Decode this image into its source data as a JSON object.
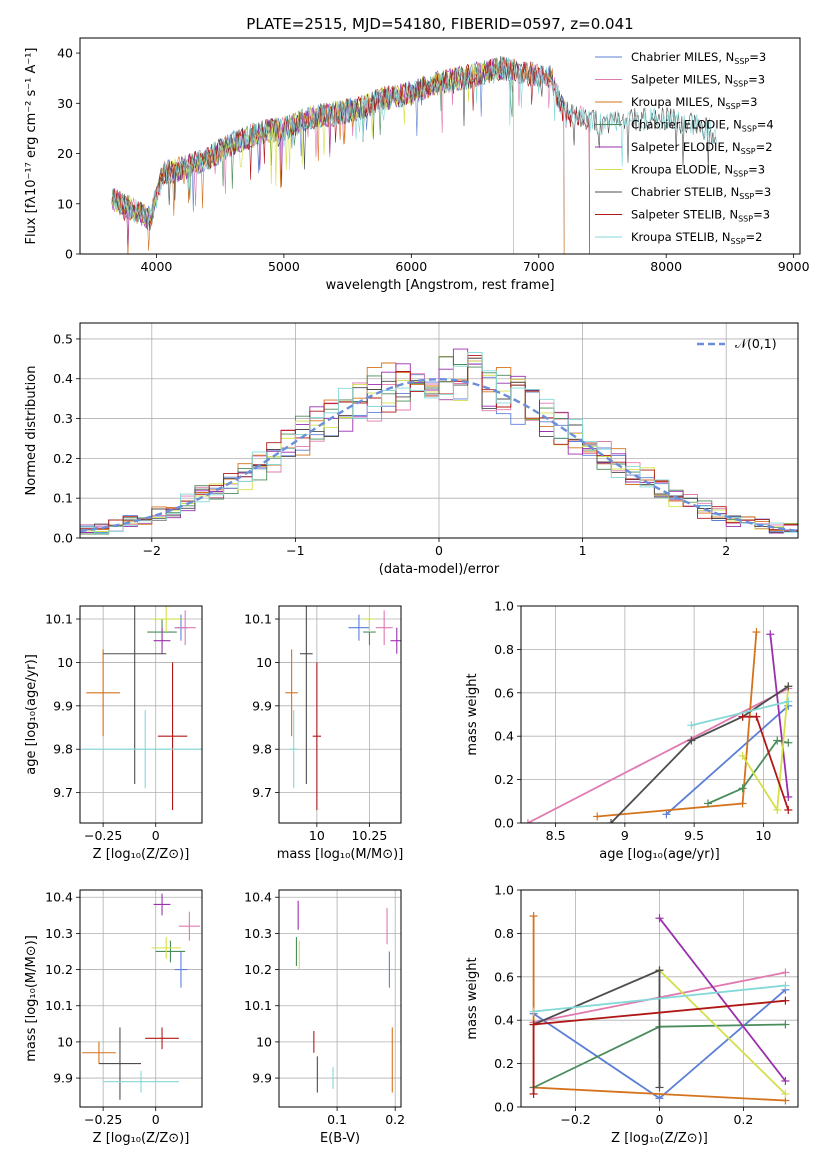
{
  "figure": {
    "title": "PLATE=2515, MJD=54180, FIBERID=0597, z=0.041"
  },
  "colors": {
    "Chabrier MILES": "#5b7fd6",
    "Salpeter MILES": "#e07ab0",
    "Kroupa MILES": "#d4731c",
    "Chabrier ELODIE": "#4a8c5a",
    "Salpeter ELODIE": "#9b2fae",
    "Kroupa ELODIE": "#d4e04a",
    "Chabrier STELIB": "#4d4d4d",
    "Salpeter STELIB": "#b01818",
    "Kroupa STELIB": "#84d8d8",
    "gauss": "#6a8fd8"
  },
  "chart_data": [
    {
      "type": "line",
      "id": "spectrum",
      "xlabel": "wavelength [Angstrom, rest frame]",
      "ylabel": "Flux [f",
      "ylabel_full": "Flux [fλ10⁻¹⁷ erg cm⁻² s⁻¹ A⁻¹]",
      "xlim": [
        3400,
        9050
      ],
      "ylim": [
        0,
        43
      ],
      "xticks": [
        4000,
        5000,
        6000,
        7000,
        8000,
        9000
      ],
      "yticks": [
        0,
        10,
        20,
        30,
        40
      ],
      "legend_position": "top-right",
      "legend": [
        {
          "model": "Chabrier MILES",
          "prefix": "Chabrier MILES, N",
          "n": "3"
        },
        {
          "model": "Salpeter MILES",
          "prefix": "Salpeter MILES, N",
          "n": "3"
        },
        {
          "model": "Kroupa MILES",
          "prefix": "Kroupa MILES, N",
          "n": "3"
        },
        {
          "model": "Chabrier ELODIE",
          "prefix": "Chabrier ELODIE, N",
          "n": "4"
        },
        {
          "model": "Salpeter ELODIE",
          "prefix": "Salpeter ELODIE, N",
          "n": "2"
        },
        {
          "model": "Kroupa ELODIE",
          "prefix": "Kroupa ELODIE, N",
          "n": "3"
        },
        {
          "model": "Chabrier STELIB",
          "prefix": "Chabrier STELIB, N",
          "n": "3"
        },
        {
          "model": "Salpeter STELIB",
          "prefix": "Salpeter STELIB, N",
          "n": "3"
        },
        {
          "model": "Kroupa STELIB",
          "prefix": "Kroupa STELIB, N",
          "n": "2"
        }
      ],
      "legend_sub": "SSP",
      "continuum": {
        "x": [
          3650,
          3800,
          3950,
          4050,
          4200,
          4400,
          4600,
          4800,
          5000,
          5200,
          5400,
          5600,
          5800,
          6000,
          6200,
          6400,
          6550,
          6700,
          6900,
          7100,
          7200,
          7500,
          7800,
          8000,
          8200,
          8400,
          8600
        ],
        "y": [
          11,
          9,
          7,
          16,
          17,
          19,
          22,
          24,
          25,
          27,
          28,
          29,
          31,
          32,
          34,
          35,
          36,
          37,
          36,
          35,
          28,
          26,
          27,
          27,
          26,
          24,
          22
        ]
      },
      "segments": {
        "Chabrier MILES": [
          3650,
          7200
        ],
        "Salpeter MILES": [
          3650,
          7400
        ],
        "Kroupa MILES": [
          3650,
          7200
        ],
        "Chabrier ELODIE": [
          3650,
          6800
        ],
        "Salpeter ELODIE": [
          3650,
          6800
        ],
        "Kroupa ELODIE": [
          3650,
          6800
        ],
        "Chabrier STELIB": [
          3650,
          8400
        ],
        "Salpeter STELIB": [
          3650,
          7400
        ],
        "Kroupa STELIB": [
          3650,
          8400
        ]
      }
    },
    {
      "type": "histogram",
      "id": "residuals",
      "xlabel": "(data-model)/error",
      "ylabel": "Normed distribution",
      "xlim": [
        -2.5,
        2.5
      ],
      "ylim": [
        0,
        0.54
      ],
      "xticks": [
        -2,
        -1,
        0,
        1,
        2
      ],
      "yticks": [
        0.0,
        0.1,
        0.2,
        0.3,
        0.4,
        0.5
      ],
      "legend": "𝒩(0,1)",
      "legend_position": "top-right",
      "bin_width": 0.1,
      "models": [
        "Chabrier MILES",
        "Salpeter MILES",
        "Kroupa MILES",
        "Chabrier ELODIE",
        "Salpeter ELODIE",
        "Kroupa ELODIE",
        "Chabrier STELIB",
        "Salpeter STELIB",
        "Kroupa STELIB"
      ]
    },
    {
      "type": "errorbar",
      "id": "age-vs-Z",
      "xlabel": "Z [log₁₀(Z/Z⊙)]",
      "ylabel": "age  [log₁₀(age/yr)]",
      "xlim": [
        -0.36,
        0.22
      ],
      "ylim": [
        9.63,
        10.13
      ],
      "xticks": [
        -0.25,
        0.0
      ],
      "yticks": [
        9.7,
        9.8,
        9.9,
        10.0,
        10.1
      ],
      "points": [
        {
          "model": "Chabrier MILES",
          "x": 0.12,
          "xerr": 0.03,
          "y": 10.08,
          "yerr": 0.03
        },
        {
          "model": "Salpeter MILES",
          "x": 0.14,
          "xerr": 0.05,
          "y": 10.08,
          "yerr": 0.04
        },
        {
          "model": "Kroupa MILES",
          "x": -0.25,
          "xerr": 0.08,
          "y": 9.93,
          "yerr": 0.1
        },
        {
          "model": "Chabrier ELODIE",
          "x": 0.03,
          "xerr": 0.07,
          "y": 10.07,
          "yerr": 0.03
        },
        {
          "model": "Salpeter ELODIE",
          "x": 0.03,
          "xerr": 0.04,
          "y": 10.05,
          "yerr": 0.03
        },
        {
          "model": "Kroupa ELODIE",
          "x": 0.05,
          "xerr": 0.07,
          "y": 10.1,
          "yerr": 0.03
        },
        {
          "model": "Chabrier STELIB",
          "x": -0.1,
          "xerr": 0.15,
          "y": 10.02,
          "yerr": 0.3
        },
        {
          "model": "Salpeter STELIB",
          "x": 0.08,
          "xerr": 0.07,
          "y": 9.83,
          "yerr": 0.17
        },
        {
          "model": "Kroupa STELIB",
          "x": -0.05,
          "xerr": 0.3,
          "y": 9.8,
          "yerr": 0.09
        }
      ]
    },
    {
      "type": "errorbar",
      "id": "age-vs-mass",
      "xlabel": "mass [log₁₀(M/M⊙)]",
      "ylabel": "",
      "xlim": [
        9.82,
        10.4
      ],
      "ylim": [
        9.63,
        10.13
      ],
      "xticks": [
        10.0,
        10.25
      ],
      "yticks": [
        9.7,
        9.8,
        9.9,
        10.0,
        10.1
      ],
      "points": [
        {
          "model": "Chabrier MILES",
          "x": 10.2,
          "xerr": 0.05,
          "y": 10.08,
          "yerr": 0.03
        },
        {
          "model": "Salpeter MILES",
          "x": 10.32,
          "xerr": 0.04,
          "y": 10.08,
          "yerr": 0.04
        },
        {
          "model": "Kroupa MILES",
          "x": 9.88,
          "xerr": 0.03,
          "y": 9.93,
          "yerr": 0.1
        },
        {
          "model": "Chabrier ELODIE",
          "x": 10.25,
          "xerr": 0.03,
          "y": 10.07,
          "yerr": 0.03
        },
        {
          "model": "Salpeter ELODIE",
          "x": 10.38,
          "xerr": 0.03,
          "y": 10.05,
          "yerr": 0.03
        },
        {
          "model": "Kroupa ELODIE",
          "x": 10.25,
          "xerr": 0.03,
          "y": 10.1,
          "yerr": 0.03
        },
        {
          "model": "Chabrier STELIB",
          "x": 9.95,
          "xerr": 0.03,
          "y": 10.02,
          "yerr": 0.3
        },
        {
          "model": "Salpeter STELIB",
          "x": 10.0,
          "xerr": 0.02,
          "y": 9.83,
          "yerr": 0.17
        },
        {
          "model": "Kroupa STELIB",
          "x": 9.89,
          "xerr": 0.02,
          "y": 9.8,
          "yerr": 0.09
        }
      ]
    },
    {
      "type": "line",
      "id": "massweight-vs-age",
      "xlabel": "age  [log₁₀(age/yr)]",
      "ylabel": "mass weight",
      "xlim": [
        8.25,
        10.25
      ],
      "ylim": [
        0,
        1.0
      ],
      "xticks": [
        8.5,
        9.0,
        9.5,
        10.0
      ],
      "yticks": [
        0.0,
        0.2,
        0.4,
        0.6,
        0.8,
        1.0
      ],
      "series": [
        {
          "model": "Chabrier MILES",
          "points": [
            [
              9.3,
              0.04
            ],
            [
              10.18,
              0.54
            ]
          ]
        },
        {
          "model": "Salpeter MILES",
          "points": [
            [
              8.3,
              0.0
            ],
            [
              10.18,
              0.62
            ]
          ]
        },
        {
          "model": "Kroupa MILES",
          "points": [
            [
              8.8,
              0.03
            ],
            [
              9.85,
              0.09
            ],
            [
              9.95,
              0.88
            ]
          ]
        },
        {
          "model": "Chabrier ELODIE",
          "points": [
            [
              9.6,
              0.09
            ],
            [
              9.85,
              0.16
            ],
            [
              10.1,
              0.38
            ],
            [
              10.18,
              0.37
            ]
          ]
        },
        {
          "model": "Salpeter ELODIE",
          "points": [
            [
              10.05,
              0.87
            ],
            [
              10.18,
              0.12
            ]
          ]
        },
        {
          "model": "Kroupa ELODIE",
          "points": [
            [
              9.85,
              0.31
            ],
            [
              10.1,
              0.06
            ],
            [
              10.18,
              0.63
            ]
          ]
        },
        {
          "model": "Chabrier STELIB",
          "points": [
            [
              8.9,
              0.0
            ],
            [
              9.48,
              0.38
            ],
            [
              9.85,
              0.49
            ],
            [
              10.18,
              0.63
            ]
          ]
        },
        {
          "model": "Salpeter STELIB",
          "points": [
            [
              9.85,
              0.49
            ],
            [
              9.95,
              0.49
            ],
            [
              10.18,
              0.06
            ]
          ]
        },
        {
          "model": "Kroupa STELIB",
          "points": [
            [
              9.48,
              0.45
            ],
            [
              10.18,
              0.56
            ]
          ]
        }
      ]
    },
    {
      "type": "errorbar",
      "id": "mass-vs-Z",
      "xlabel": "Z [log₁₀(Z/Z⊙)]",
      "ylabel": "mass [log₁₀(M/M⊙)]",
      "xlim": [
        -0.36,
        0.22
      ],
      "ylim": [
        9.82,
        10.42
      ],
      "xticks": [
        -0.25,
        0.0
      ],
      "yticks": [
        9.9,
        10.0,
        10.1,
        10.2,
        10.3,
        10.4
      ],
      "points": [
        {
          "model": "Chabrier MILES",
          "x": 0.12,
          "xerr": 0.03,
          "y": 10.2,
          "yerr": 0.05
        },
        {
          "model": "Salpeter MILES",
          "x": 0.16,
          "xerr": 0.05,
          "y": 10.32,
          "yerr": 0.04
        },
        {
          "model": "Kroupa MILES",
          "x": -0.27,
          "xerr": 0.08,
          "y": 9.97,
          "yerr": 0.03
        },
        {
          "model": "Chabrier ELODIE",
          "x": 0.07,
          "xerr": 0.07,
          "y": 10.25,
          "yerr": 0.03
        },
        {
          "model": "Salpeter ELODIE",
          "x": 0.03,
          "xerr": 0.04,
          "y": 10.38,
          "yerr": 0.03
        },
        {
          "model": "Kroupa ELODIE",
          "x": 0.05,
          "xerr": 0.07,
          "y": 10.26,
          "yerr": 0.03
        },
        {
          "model": "Chabrier STELIB",
          "x": -0.17,
          "xerr": 0.1,
          "y": 9.94,
          "yerr": 0.1
        },
        {
          "model": "Salpeter STELIB",
          "x": 0.03,
          "xerr": 0.08,
          "y": 10.01,
          "yerr": 0.03
        },
        {
          "model": "Kroupa STELIB",
          "x": -0.07,
          "xerr": 0.18,
          "y": 9.89,
          "yerr": 0.03
        }
      ]
    },
    {
      "type": "errorbar",
      "id": "mass-vs-EBV",
      "xlabel": "E(B-V)",
      "ylabel": "",
      "xlim": [
        0.0,
        0.21
      ],
      "ylim": [
        9.82,
        10.42
      ],
      "xticks": [
        0.1,
        0.2
      ],
      "yticks": [
        9.9,
        10.0,
        10.1,
        10.2,
        10.3,
        10.4
      ],
      "points": [
        {
          "model": "Chabrier MILES",
          "x": 0.19,
          "xerr": 0.0,
          "y": 10.2,
          "yerr": 0.05
        },
        {
          "model": "Salpeter MILES",
          "x": 0.186,
          "xerr": 0.0,
          "y": 10.32,
          "yerr": 0.05
        },
        {
          "model": "Kroupa MILES",
          "x": 0.195,
          "xerr": 0.0,
          "y": 9.95,
          "yerr": 0.09
        },
        {
          "model": "Chabrier ELODIE",
          "x": 0.03,
          "xerr": 0.0,
          "y": 10.25,
          "yerr": 0.04
        },
        {
          "model": "Salpeter ELODIE",
          "x": 0.033,
          "xerr": 0.0,
          "y": 10.35,
          "yerr": 0.04
        },
        {
          "model": "Kroupa ELODIE",
          "x": 0.035,
          "xerr": 0.0,
          "y": 10.24,
          "yerr": 0.04
        },
        {
          "model": "Chabrier STELIB",
          "x": 0.066,
          "xerr": 0.0,
          "y": 9.91,
          "yerr": 0.05
        },
        {
          "model": "Salpeter STELIB",
          "x": 0.06,
          "xerr": 0.0,
          "y": 10.0,
          "yerr": 0.03
        },
        {
          "model": "Kroupa STELIB",
          "x": 0.093,
          "xerr": 0.0,
          "y": 9.9,
          "yerr": 0.03
        }
      ]
    },
    {
      "type": "line",
      "id": "massweight-vs-Z",
      "xlabel": "Z [log₁₀(Z/Z⊙)]",
      "ylabel": "mass weight",
      "xlim": [
        -0.33,
        0.33
      ],
      "ylim": [
        0,
        1.0
      ],
      "xticks": [
        -0.2,
        0.0,
        0.2
      ],
      "yticks": [
        0.0,
        0.2,
        0.4,
        0.6,
        0.8,
        1.0
      ],
      "series": [
        {
          "model": "Chabrier MILES",
          "points": [
            [
              -0.3,
              0.43
            ],
            [
              0.0,
              0.04
            ],
            [
              0.3,
              0.54
            ]
          ]
        },
        {
          "model": "Salpeter MILES",
          "points": [
            [
              -0.3,
              0.39
            ],
            [
              0.3,
              0.62
            ]
          ]
        },
        {
          "model": "Kroupa MILES",
          "points": [
            [
              -0.3,
              0.88
            ],
            [
              -0.3,
              0.09
            ],
            [
              0.3,
              0.03
            ]
          ]
        },
        {
          "model": "Chabrier ELODIE",
          "points": [
            [
              -0.3,
              0.09
            ],
            [
              0.0,
              0.37
            ],
            [
              0.3,
              0.38
            ]
          ]
        },
        {
          "model": "Salpeter ELODIE",
          "points": [
            [
              0.0,
              0.87
            ],
            [
              0.3,
              0.12
            ]
          ]
        },
        {
          "model": "Kroupa ELODIE",
          "points": [
            [
              0.0,
              0.63
            ],
            [
              0.3,
              0.06
            ]
          ]
        },
        {
          "model": "Chabrier STELIB",
          "points": [
            [
              -0.3,
              0.38
            ],
            [
              0.0,
              0.63
            ],
            [
              0.0,
              0.09
            ]
          ]
        },
        {
          "model": "Salpeter STELIB",
          "points": [
            [
              -0.3,
              0.06
            ],
            [
              -0.3,
              0.38
            ],
            [
              0.3,
              0.49
            ]
          ]
        },
        {
          "model": "Kroupa STELIB",
          "points": [
            [
              -0.3,
              0.44
            ],
            [
              0.3,
              0.56
            ]
          ]
        }
      ]
    }
  ]
}
